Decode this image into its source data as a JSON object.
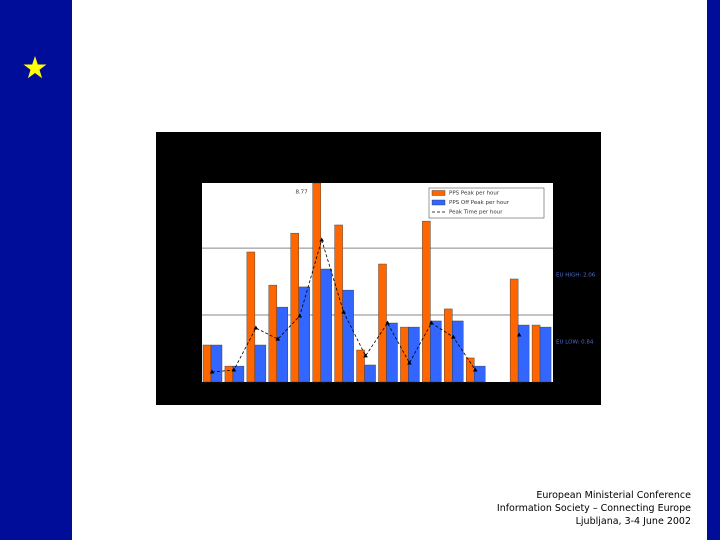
{
  "footer": [
    "European Ministerial Conference",
    "Information Society – Connecting Europe",
    "Ljubljana, 3-4 June 2002"
  ],
  "chart_data": {
    "type": "bar",
    "categories": [
      null,
      null,
      null,
      null,
      null,
      null,
      null,
      null,
      null,
      null,
      null,
      null,
      null,
      null,
      null,
      null
    ],
    "series": [
      {
        "name": "PPS Peak per hour",
        "color": "#ff6600",
        "values": [
          1.63,
          0.7,
          5.73,
          4.27,
          6.56,
          8.77,
          6.92,
          1.41,
          5.2,
          2.42,
          7.09,
          3.22,
          1.06,
          null,
          4.54,
          2.51
        ]
      },
      {
        "name": "PPS Off Peak per hour",
        "color": "#3366ff",
        "values": [
          1.63,
          0.7,
          1.63,
          3.3,
          4.19,
          4.98,
          4.05,
          0.75,
          2.6,
          2.42,
          2.69,
          2.69,
          0.7,
          null,
          2.51,
          2.42
        ]
      },
      {
        "name": "Peak Time per hour",
        "type": "line",
        "color": "#000000",
        "values": [
          0.44,
          0.53,
          2.38,
          1.89,
          2.91,
          6.26,
          3.08,
          1.15,
          2.6,
          0.84,
          2.6,
          1.98,
          0.53,
          null,
          2.07,
          null
        ]
      }
    ],
    "reference_lines": [
      {
        "value": 5.9,
        "label": "EU HIGH: 2.06"
      },
      {
        "value": 2.95,
        "label": "EU LOW: 0.84"
      }
    ],
    "ylim": [
      0,
      8.77
    ],
    "legend": "top-right"
  }
}
